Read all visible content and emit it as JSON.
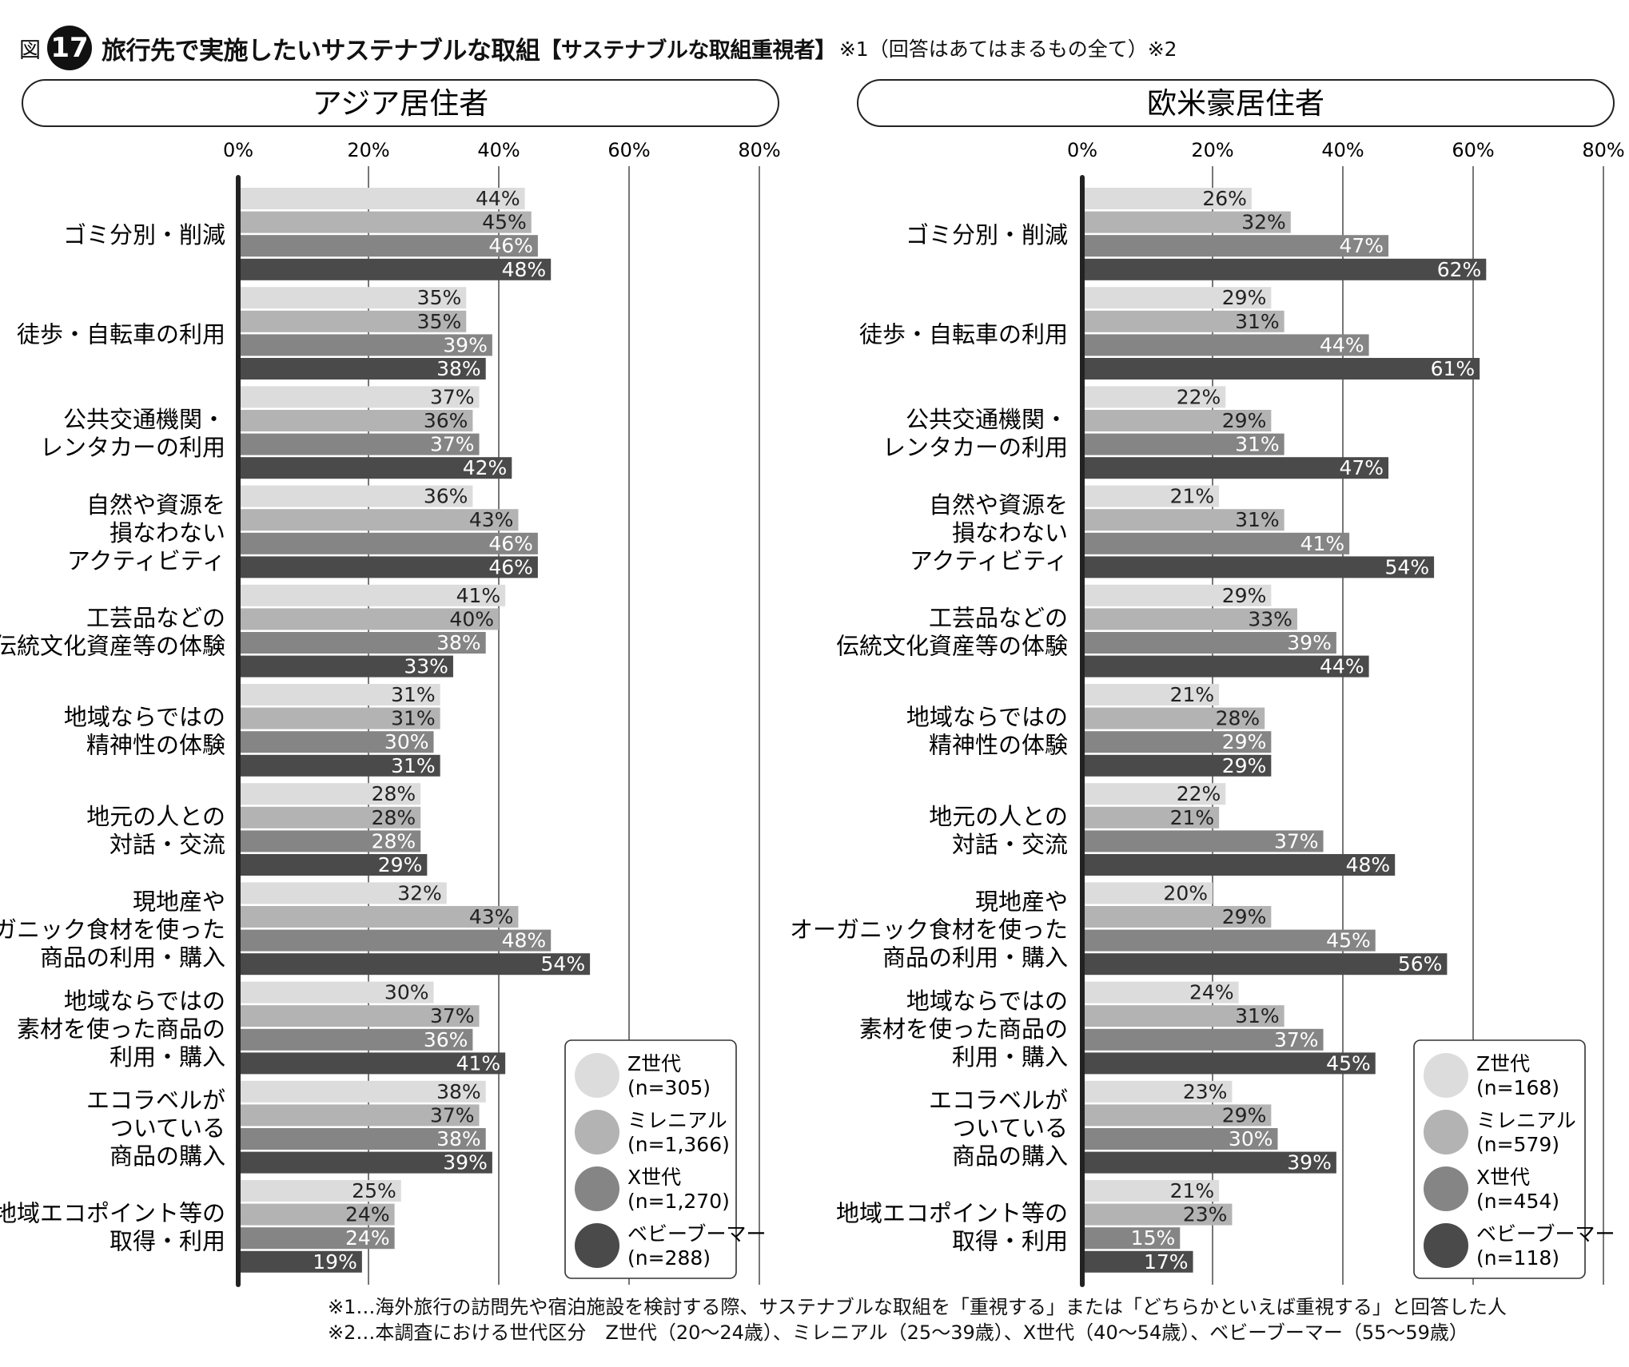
{
  "figure": {
    "prefix": "図",
    "number": "17",
    "title": "旅行先で実施したいサステナブルな取組",
    "subtitle": "【サステナブルな取組重視者】",
    "note": "※1（回答はあてはまるもの全て）※2"
  },
  "colors": {
    "z": "#dcdcdc",
    "millennial": "#b3b3b3",
    "x": "#858585",
    "boomer": "#4a4a4a",
    "axis": "#222222",
    "grid": "#555555"
  },
  "chart_data": [
    {
      "type": "bar",
      "orientation": "horizontal",
      "title": "アジア居住者",
      "xlim": [
        0,
        80
      ],
      "ticks": [
        "0%",
        "20%",
        "40%",
        "60%",
        "80%"
      ],
      "legend_position": "bottom-right",
      "categories": [
        "ゴミ分別・削減",
        "徒歩・自転車の利用",
        "公共交通機関・\nレンタカーの利用",
        "自然や資源を\n損なわない\nアクティビティ",
        "工芸品などの\n伝統文化資産等の体験",
        "地域ならではの\n精神性の体験",
        "地元の人との\n対話・交流",
        "現地産や\nオーガニック食材を使った\n商品の利用・購入",
        "地域ならではの\n素材を使った商品の\n利用・購入",
        "エコラベルが\nついている\n商品の購入",
        "地域エコポイント等の\n取得・利用"
      ],
      "series": [
        {
          "name": "Z世代",
          "n": "(n=305)",
          "values": [
            44,
            35,
            37,
            36,
            41,
            31,
            28,
            32,
            30,
            38,
            25
          ]
        },
        {
          "name": "ミレニアル",
          "n": "(n=1,366)",
          "values": [
            45,
            35,
            36,
            43,
            40,
            31,
            28,
            43,
            37,
            37,
            24
          ]
        },
        {
          "name": "X世代",
          "n": "(n=1,270)",
          "values": [
            46,
            39,
            37,
            46,
            38,
            30,
            28,
            48,
            36,
            38,
            24
          ]
        },
        {
          "name": "ベビーブーマー",
          "n": "(n=288)",
          "values": [
            48,
            38,
            42,
            46,
            33,
            31,
            29,
            54,
            41,
            39,
            19
          ]
        }
      ]
    },
    {
      "type": "bar",
      "orientation": "horizontal",
      "title": "欧米豪居住者",
      "xlim": [
        0,
        80
      ],
      "ticks": [
        "0%",
        "20%",
        "40%",
        "60%",
        "80%"
      ],
      "legend_position": "bottom-right",
      "categories": [
        "ゴミ分別・削減",
        "徒歩・自転車の利用",
        "公共交通機関・\nレンタカーの利用",
        "自然や資源を\n損なわない\nアクティビティ",
        "工芸品などの\n伝統文化資産等の体験",
        "地域ならではの\n精神性の体験",
        "地元の人との\n対話・交流",
        "現地産や\nオーガニック食材を使った\n商品の利用・購入",
        "地域ならではの\n素材を使った商品の\n利用・購入",
        "エコラベルが\nついている\n商品の購入",
        "地域エコポイント等の\n取得・利用"
      ],
      "series": [
        {
          "name": "Z世代",
          "n": "(n=168)",
          "values": [
            26,
            29,
            22,
            21,
            29,
            21,
            22,
            20,
            24,
            23,
            21
          ]
        },
        {
          "name": "ミレニアル",
          "n": "(n=579)",
          "values": [
            32,
            31,
            29,
            31,
            33,
            28,
            21,
            29,
            31,
            29,
            23
          ]
        },
        {
          "name": "X世代",
          "n": "(n=454)",
          "values": [
            47,
            44,
            31,
            41,
            39,
            29,
            37,
            45,
            37,
            30,
            15
          ]
        },
        {
          "name": "ベビーブーマー",
          "n": "(n=118)",
          "values": [
            62,
            61,
            47,
            54,
            44,
            29,
            48,
            56,
            45,
            39,
            17
          ]
        }
      ]
    }
  ],
  "footnotes": [
    "※1…海外旅行の訪問先や宿泊施設を検討する際、サステナブルな取組を「重視する」または「どちらかといえば重視する」と回答した人",
    "※2…本調査における世代区分　Z世代（20〜24歳）、ミレニアル（25〜39歳）、X世代（40〜54歳）、ベビーブーマー（55〜59歳）"
  ]
}
